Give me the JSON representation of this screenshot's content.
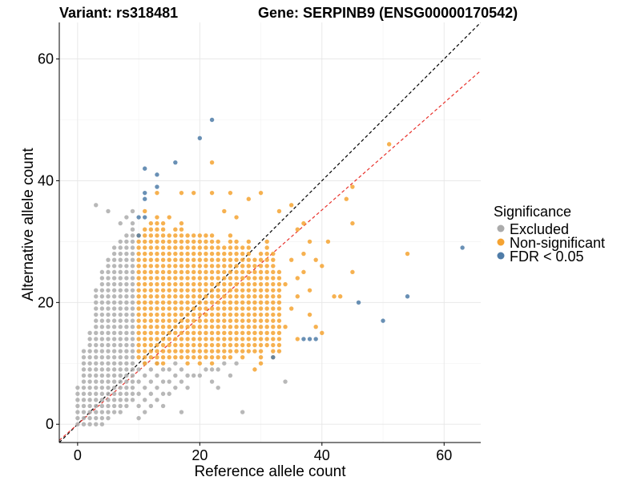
{
  "chart_data": {
    "type": "scatter",
    "title_left": "Variant: rs318481",
    "title_right": "Gene: SERPINB9 (ENSG00000170542)",
    "xlabel": "Reference allele count",
    "ylabel": "Alternative allele count",
    "xlim": [
      -3,
      66
    ],
    "ylim": [
      -3,
      66
    ],
    "xticks": [
      0,
      20,
      40,
      60
    ],
    "yticks": [
      0,
      20,
      40,
      60
    ],
    "grid": true,
    "legend": {
      "title": "Significance",
      "position": "right",
      "entries": [
        {
          "label": "Excluded",
          "color": "#ababab"
        },
        {
          "label": "Non-significant",
          "color": "#f5a331"
        },
        {
          "label": "FDR < 0.05",
          "color": "#4f7ca8"
        }
      ]
    },
    "reference_lines": [
      {
        "name": "identity",
        "slope": 1.0,
        "intercept": 0,
        "color": "#000000",
        "dash": "dashed"
      },
      {
        "name": "fit",
        "slope": 0.88,
        "intercept": 0,
        "color": "#e8302a",
        "dash": "dashed"
      }
    ],
    "series": [
      {
        "name": "Excluded",
        "color": "#ababab",
        "rule": "grid fill x 0-9 for y 0-15 and shrinking upper envelope; sparse points x 10-27 for y <= 10",
        "grid_ranges": [
          {
            "x": 0,
            "y": [
              0,
              6
            ]
          },
          {
            "x": 1,
            "y": [
              0,
              12
            ]
          },
          {
            "x": 2,
            "y": [
              0,
              15
            ]
          },
          {
            "x": 3,
            "y": [
              0,
              22
            ]
          },
          {
            "x": 4,
            "y": [
              0,
              25
            ]
          },
          {
            "x": 5,
            "y": [
              1,
              27
            ]
          },
          {
            "x": 6,
            "y": [
              2,
              29
            ]
          },
          {
            "x": 7,
            "y": [
              2,
              30
            ]
          },
          {
            "x": 8,
            "y": [
              3,
              31
            ]
          },
          {
            "x": 9,
            "y": [
              4,
              33
            ]
          }
        ],
        "extra": [
          [
            3,
            36
          ],
          [
            5,
            35
          ],
          [
            7,
            33
          ],
          [
            8,
            34
          ],
          [
            9,
            35
          ],
          [
            10,
            1
          ],
          [
            10,
            3
          ],
          [
            10,
            5
          ],
          [
            10,
            7
          ],
          [
            10,
            9
          ],
          [
            11,
            2
          ],
          [
            11,
            4
          ],
          [
            11,
            6
          ],
          [
            11,
            8
          ],
          [
            11,
            10
          ],
          [
            12,
            3
          ],
          [
            12,
            5
          ],
          [
            12,
            7
          ],
          [
            12,
            9
          ],
          [
            13,
            4
          ],
          [
            13,
            6
          ],
          [
            13,
            8
          ],
          [
            13,
            10
          ],
          [
            14,
            3
          ],
          [
            14,
            5
          ],
          [
            14,
            7
          ],
          [
            14,
            9
          ],
          [
            15,
            5
          ],
          [
            15,
            7
          ],
          [
            15,
            9
          ],
          [
            16,
            6
          ],
          [
            16,
            8
          ],
          [
            16,
            10
          ],
          [
            17,
            7
          ],
          [
            17,
            9
          ],
          [
            18,
            6
          ],
          [
            18,
            8
          ],
          [
            19,
            8
          ],
          [
            20,
            8
          ],
          [
            21,
            9
          ],
          [
            22,
            9
          ],
          [
            23,
            9
          ],
          [
            24,
            10
          ],
          [
            25,
            8
          ],
          [
            26,
            10
          ],
          [
            22,
            7
          ],
          [
            17,
            2
          ],
          [
            23,
            6
          ],
          [
            27,
            2
          ],
          [
            34,
            7
          ]
        ]
      },
      {
        "name": "Non-significant",
        "color": "#f5a331",
        "rule": "grid fill x 10-33 between lower and upper envelopes; sparse points beyond",
        "grid_ranges": [
          {
            "x": 10,
            "y": [
              11,
              31
            ]
          },
          {
            "x": 11,
            "y": [
              10,
              32
            ]
          },
          {
            "x": 12,
            "y": [
              11,
              33
            ]
          },
          {
            "x": 13,
            "y": [
              10,
              34
            ]
          },
          {
            "x": 14,
            "y": [
              10,
              33
            ]
          },
          {
            "x": 15,
            "y": [
              11,
              31
            ]
          },
          {
            "x": 16,
            "y": [
              11,
              32
            ]
          },
          {
            "x": 17,
            "y": [
              11,
              33
            ]
          },
          {
            "x": 18,
            "y": [
              10,
              31
            ]
          },
          {
            "x": 19,
            "y": [
              11,
              31
            ]
          },
          {
            "x": 20,
            "y": [
              10,
              31
            ]
          },
          {
            "x": 21,
            "y": [
              11,
              31
            ]
          },
          {
            "x": 22,
            "y": [
              10,
              31
            ]
          },
          {
            "x": 23,
            "y": [
              11,
              30
            ]
          },
          {
            "x": 24,
            "y": [
              11,
              29
            ]
          },
          {
            "x": 25,
            "y": [
              11,
              31
            ]
          },
          {
            "x": 26,
            "y": [
              12,
              30
            ]
          },
          {
            "x": 27,
            "y": [
              11,
              29
            ]
          },
          {
            "x": 28,
            "y": [
              12,
              30
            ]
          },
          {
            "x": 29,
            "y": [
              12,
              27
            ]
          },
          {
            "x": 30,
            "y": [
              11,
              28
            ]
          },
          {
            "x": 31,
            "y": [
              13,
              30
            ]
          },
          {
            "x": 32,
            "y": [
              12,
              28
            ]
          },
          {
            "x": 33,
            "y": [
              12,
              25
            ]
          }
        ],
        "extra": [
          [
            11,
            35
          ],
          [
            13,
            38
          ],
          [
            15,
            34
          ],
          [
            17,
            38
          ],
          [
            19,
            38
          ],
          [
            22,
            43
          ],
          [
            22,
            38
          ],
          [
            24,
            35
          ],
          [
            25,
            38
          ],
          [
            26,
            34
          ],
          [
            28,
            37
          ],
          [
            30,
            38
          ],
          [
            33,
            35
          ],
          [
            35,
            36
          ],
          [
            36,
            32
          ],
          [
            37,
            33
          ],
          [
            37,
            28
          ],
          [
            38,
            30
          ],
          [
            34,
            23
          ],
          [
            35,
            27
          ],
          [
            35,
            19
          ],
          [
            36,
            21
          ],
          [
            36,
            14
          ],
          [
            37,
            25
          ],
          [
            38,
            18
          ],
          [
            38,
            22
          ],
          [
            39,
            27
          ],
          [
            40,
            26
          ],
          [
            40,
            15
          ],
          [
            41,
            30
          ],
          [
            42,
            21
          ],
          [
            43,
            21
          ],
          [
            44,
            37
          ],
          [
            45,
            39
          ],
          [
            45,
            33
          ],
          [
            45,
            25
          ],
          [
            51,
            46
          ],
          [
            54,
            28
          ],
          [
            34,
            16
          ],
          [
            36,
            24
          ],
          [
            39,
            16
          ],
          [
            30,
            10
          ],
          [
            29,
            9
          ],
          [
            32,
            11
          ]
        ]
      },
      {
        "name": "FDR < 0.05",
        "color": "#4f7ca8",
        "points": [
          [
            10,
            34
          ],
          [
            11,
            34
          ],
          [
            10,
            31
          ],
          [
            11,
            42
          ],
          [
            11,
            38
          ],
          [
            11,
            37
          ],
          [
            13,
            41
          ],
          [
            13,
            39
          ],
          [
            16,
            43
          ],
          [
            20,
            47
          ],
          [
            22,
            50
          ],
          [
            32,
            11
          ],
          [
            37,
            14
          ],
          [
            38,
            14
          ],
          [
            39,
            14
          ],
          [
            46,
            20
          ],
          [
            50,
            17
          ],
          [
            54,
            21
          ],
          [
            63,
            29
          ]
        ]
      }
    ]
  }
}
